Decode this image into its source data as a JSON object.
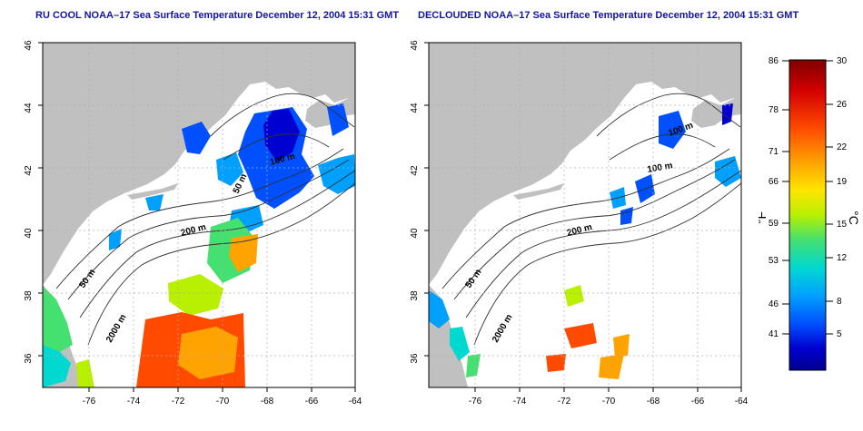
{
  "panels": [
    {
      "title": "RU COOL NOAA–17 Sea Surface Temperature December 12, 2004 15:31 GMT",
      "contour_labels": [
        "50 m",
        "100 m",
        "200 m",
        "50 m",
        "2000 m"
      ]
    },
    {
      "title": "DECLOUDED NOAA–17 Sea Surface Temperature December 12, 2004 15:31 GMT",
      "contour_labels": [
        "100 m",
        "100 m",
        "200 m",
        "50 m",
        "2000 m"
      ]
    }
  ],
  "axes": {
    "x_ticks": [
      "-76",
      "-74",
      "-72",
      "-70",
      "-68",
      "-66",
      "-64"
    ],
    "y_ticks": [
      "46",
      "44",
      "42",
      "40",
      "38",
      "36"
    ]
  },
  "colorbar": {
    "unit_left": "°F",
    "unit_right": "°C",
    "f_ticks": [
      "86",
      "78",
      "71",
      "66",
      "59",
      "53",
      "46",
      "41"
    ],
    "c_ticks": [
      "30",
      "26",
      "22",
      "19",
      "15",
      "12",
      "8",
      "5"
    ],
    "colors": [
      "#7f0000",
      "#d40000",
      "#ff4a00",
      "#ffa300",
      "#ffe500",
      "#b8f000",
      "#44e070",
      "#00d8d0",
      "#00a0ff",
      "#0050ff",
      "#0000d0",
      "#00008f"
    ]
  },
  "colors": {
    "land": "#c0c0c0",
    "contour": "#303030",
    "grid": "#b0b0b0",
    "title": "#1414a0"
  }
}
